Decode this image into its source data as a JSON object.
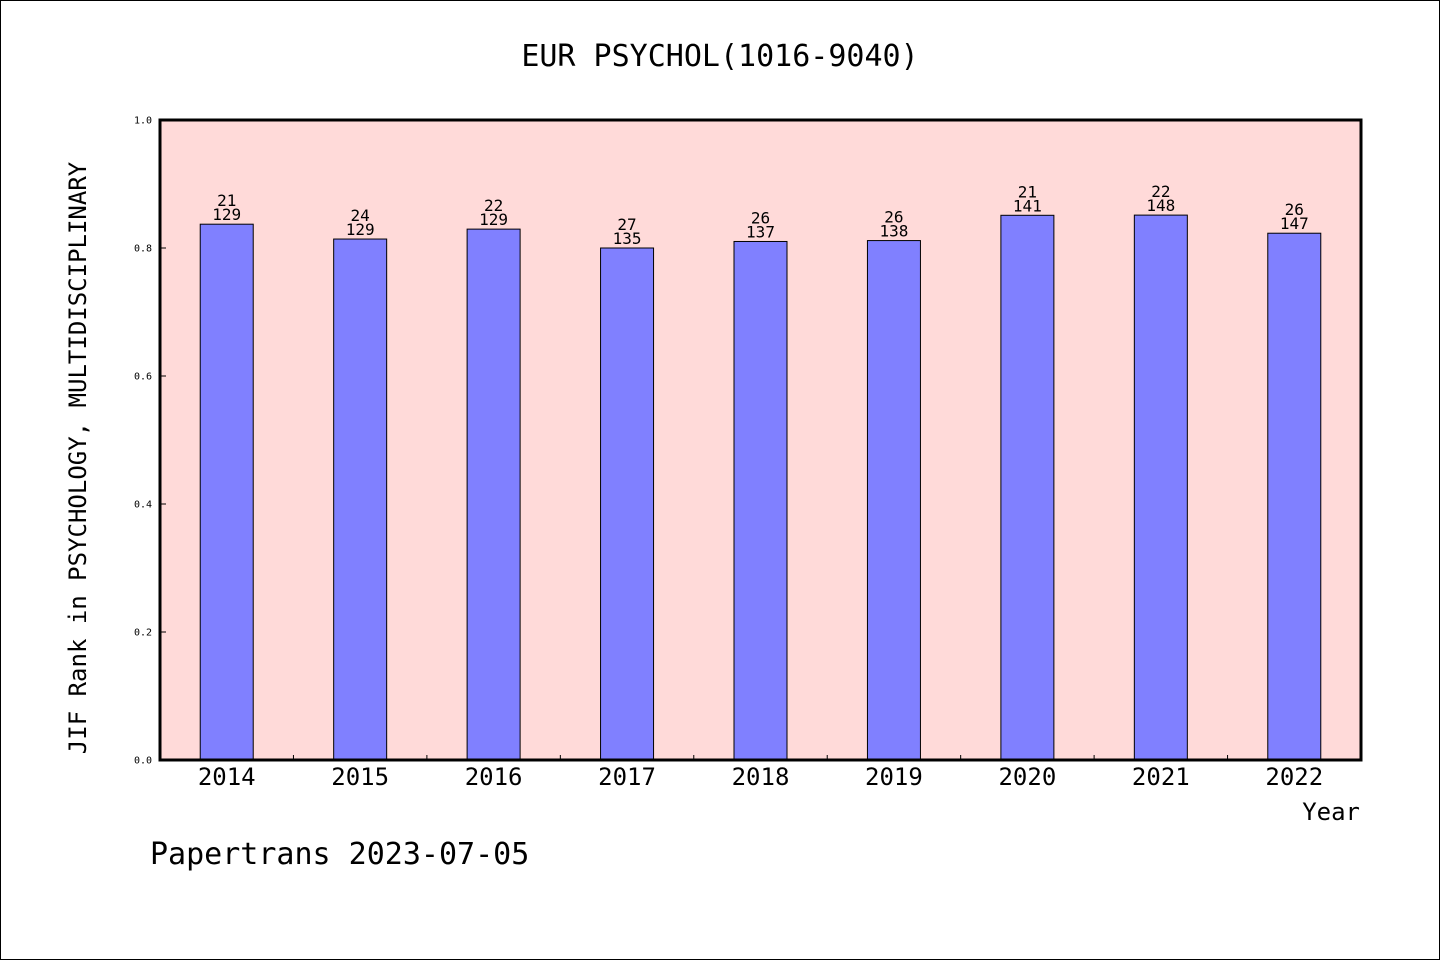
{
  "footer": "Papertrans 2023-07-05",
  "colors": {
    "plot_background": "#FFDAD9",
    "bar": "#8080FF"
  },
  "chart_data": {
    "type": "bar",
    "title": "EUR PSYCHOL(1016-9040)",
    "xlabel": "Year",
    "ylabel": "JIF Rank in PSYCHOLOGY, MULTIDISCIPLINARY",
    "ylim": [
      0,
      1.0
    ],
    "yticks": [
      "0.0",
      "0.2",
      "0.4",
      "0.6",
      "0.8",
      "1.0"
    ],
    "grid": false,
    "categories": [
      "2014",
      "2015",
      "2016",
      "2017",
      "2018",
      "2019",
      "2020",
      "2021",
      "2022"
    ],
    "values": [
      0.8372,
      0.814,
      0.8295,
      0.8,
      0.8102,
      0.8116,
      0.8511,
      0.8514,
      0.8231
    ],
    "rank_labels": [
      "21",
      "24",
      "22",
      "27",
      "26",
      "26",
      "21",
      "22",
      "26"
    ],
    "total_labels": [
      "129",
      "129",
      "129",
      "135",
      "137",
      "138",
      "141",
      "148",
      "147"
    ]
  }
}
